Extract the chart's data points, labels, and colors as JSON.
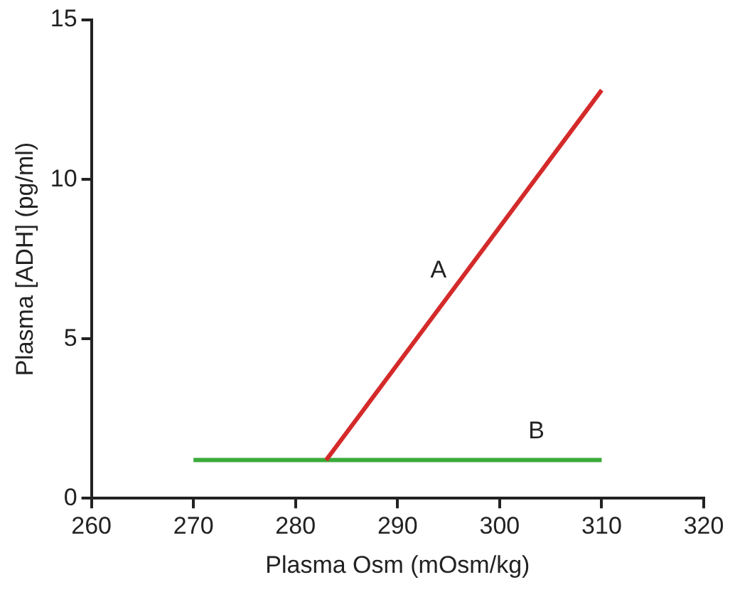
{
  "chart_data": {
    "type": "line",
    "xlabel": "Plasma Osm (mOsm/kg)",
    "ylabel": "Plasma [ADH] (pg/ml)",
    "series": [
      {
        "name": "A",
        "color": "#d42a2a",
        "x": [
          283,
          310
        ],
        "values": [
          1.2,
          12.8
        ]
      },
      {
        "name": "B",
        "color": "#3aaa3a",
        "x": [
          270,
          310
        ],
        "values": [
          1.2,
          1.2
        ]
      }
    ],
    "xlim": [
      260,
      320
    ],
    "xticks": [
      260,
      270,
      280,
      290,
      300,
      310,
      320
    ],
    "ylim": [
      0,
      15
    ],
    "yticks": [
      0,
      5,
      10,
      15
    ],
    "grid": false,
    "legend": false,
    "marker": "none",
    "line_style": "solid"
  }
}
